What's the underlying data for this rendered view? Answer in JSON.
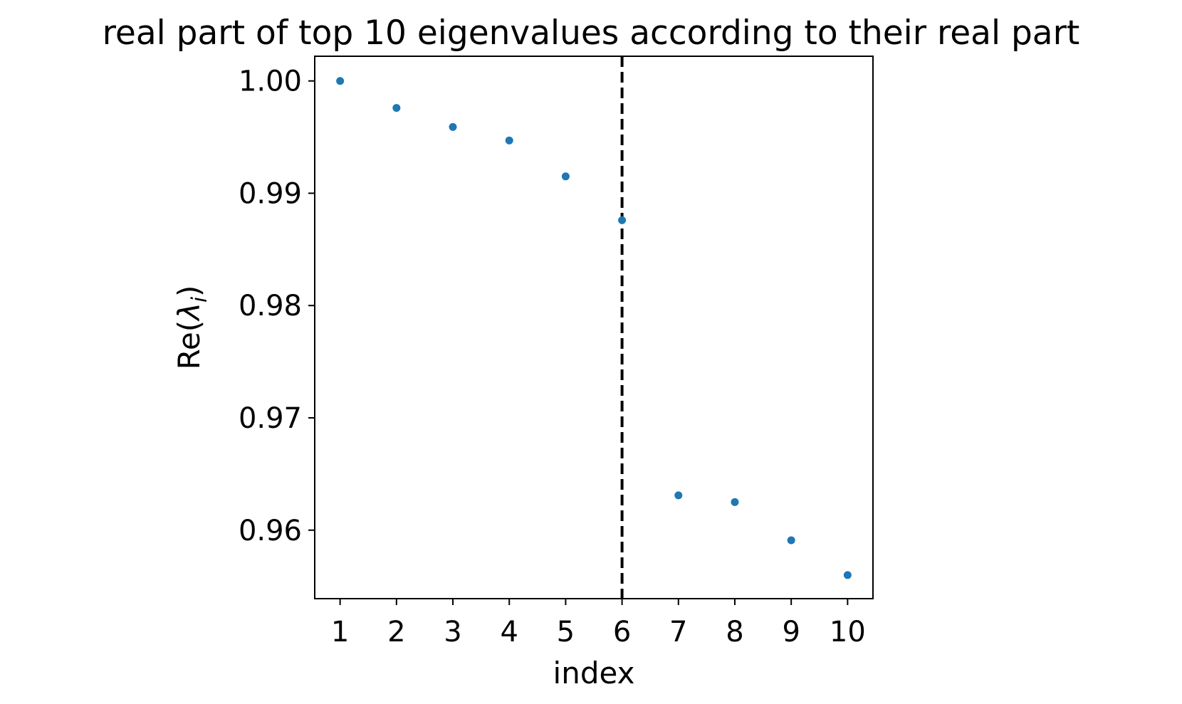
{
  "chart_data": {
    "type": "scatter",
    "title": "real part of top 10 eigenvalues according to their real part",
    "xlabel": "index",
    "ylabel": {
      "prefix": "Re(",
      "symbol": "λ",
      "subscript": "i",
      "suffix": ")"
    },
    "x": [
      1,
      2,
      3,
      4,
      5,
      6,
      7,
      8,
      9,
      10
    ],
    "y": [
      1.0,
      0.9976,
      0.9959,
      0.9947,
      0.9915,
      0.9876,
      0.9631,
      0.9625,
      0.9591,
      0.956
    ],
    "xlim": [
      0.55,
      10.45
    ],
    "ylim": [
      0.9539,
      1.0022
    ],
    "xticks": [
      1,
      2,
      3,
      4,
      5,
      6,
      7,
      8,
      9,
      10
    ],
    "yticks": [
      0.96,
      0.97,
      0.98,
      0.99,
      1.0
    ],
    "ytick_labels": [
      "0.96",
      "0.97",
      "0.98",
      "0.99",
      "1.00"
    ],
    "vline": {
      "x": 6,
      "style": "dashed",
      "color": "#000000"
    },
    "marker_color": "#1f77b4",
    "grid": false,
    "legend": false
  }
}
